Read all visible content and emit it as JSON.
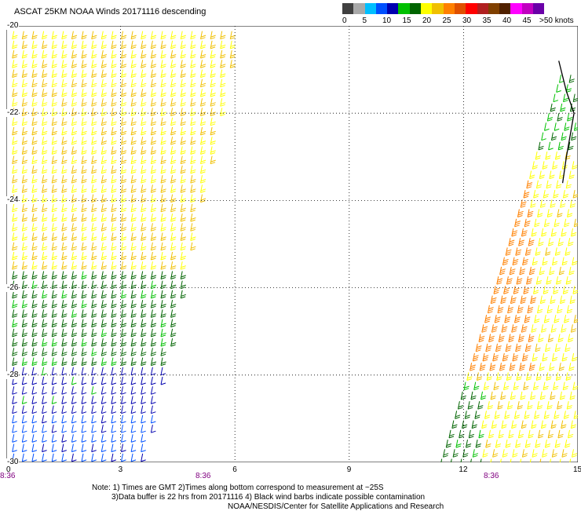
{
  "title": "ASCAT 25KM NOAA Winds 20171116 descending",
  "legend": {
    "colors": [
      "#404040",
      "#a9a9a9",
      "#00bfff",
      "#0050ff",
      "#0000b0",
      "#00c000",
      "#006400",
      "#ffff00",
      "#f0c000",
      "#ff8000",
      "#e05000",
      "#ff0000",
      "#b02020",
      "#804000",
      "#502000",
      "#ff00ff",
      "#c000c0",
      "#6a00a8"
    ],
    "ticks": [
      "0",
      "5",
      "10",
      "15",
      "20",
      "25",
      "30",
      "35",
      "40",
      "45",
      ">50 knots"
    ]
  },
  "y_axis": {
    "labels": [
      "-20",
      "-22",
      "-24",
      "-26",
      "-28",
      "-30"
    ]
  },
  "x_axis": {
    "labels": [
      "0",
      "3",
      "6",
      "9",
      "12",
      "15"
    ]
  },
  "pass_times": [
    "8:36",
    "8:36",
    "8:36"
  ],
  "notes": {
    "line1": "Note: 1) Times are GMT 2)Times along bottom correspond to measurement at ~25S",
    "line2": "3)Data buffer is 22 hrs from 20171116 4) Black wind barbs indicate possible contamination",
    "line3": "NOAA/NESDIS/Center for Satellite Applications and Research"
  },
  "map": {
    "lon_range": [
      0,
      15
    ],
    "lat_range": [
      -30,
      -20
    ],
    "swaths": [
      {
        "name": "west-swath",
        "top": [
          [
            0.1,
            -20.0
          ],
          [
            6.2,
            -20.0
          ]
        ],
        "bottom": [
          [
            0.1,
            -30.0
          ],
          [
            3.7,
            -30.0
          ]
        ]
      },
      {
        "name": "east-swath",
        "top": [
          [
            14.5,
            -21.0
          ],
          [
            15.0,
            -21.0
          ]
        ],
        "bottom": [
          [
            11.3,
            -30.0
          ],
          [
            15.0,
            -30.0
          ]
        ]
      }
    ],
    "coastline": [
      [
        14.5,
        -20.8
      ],
      [
        14.7,
        -21.5
      ],
      [
        14.9,
        -22.0
      ],
      [
        14.8,
        -22.5
      ],
      [
        14.7,
        -23.0
      ],
      [
        14.6,
        -23.6
      ]
    ]
  }
}
